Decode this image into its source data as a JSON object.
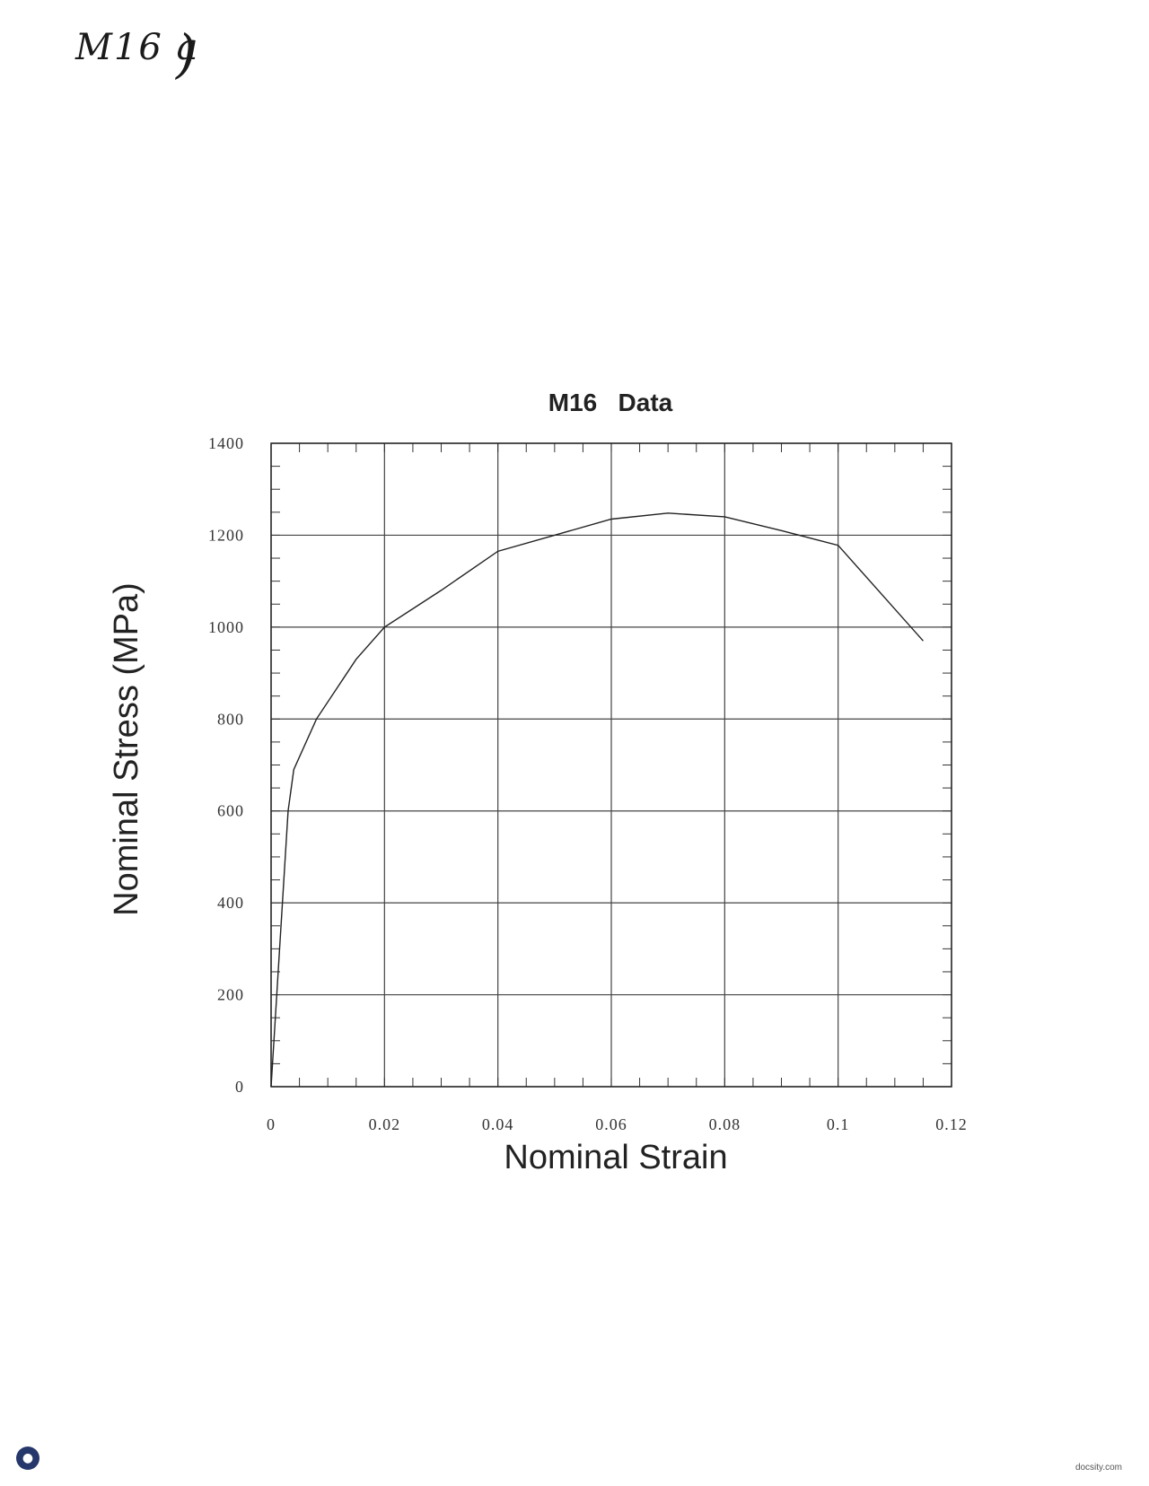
{
  "page": {
    "handwritten_note": "M16 a",
    "handwritten_paren": ")",
    "footer_site": "docsity.com",
    "footer_logo_icon": "docsity-logo-icon"
  },
  "chart_data": {
    "type": "line",
    "title": "M16   Data",
    "xlabel": "Nominal Strain",
    "ylabel": "Nominal Stress (MPa)",
    "xlim": [
      0,
      0.12
    ],
    "ylim": [
      0,
      1400
    ],
    "x_ticks": [
      0,
      0.02,
      0.04,
      0.06,
      0.08,
      0.1,
      0.12
    ],
    "x_tick_labels": [
      "0",
      "0.02",
      "0.04",
      "0.06",
      "0.08",
      "0.1",
      "0.12"
    ],
    "y_ticks": [
      0,
      200,
      400,
      600,
      800,
      1000,
      1200,
      1400
    ],
    "y_tick_labels": [
      "0",
      "200",
      "400",
      "600",
      "800",
      "1000",
      "1200",
      "1400"
    ],
    "grid": true,
    "x_minor_step": 0.005,
    "y_minor_step": 50,
    "line_color": "#222222",
    "series": [
      {
        "x": [
          0,
          0.001,
          0.002,
          0.003,
          0.004,
          0.008,
          0.015,
          0.02,
          0.03,
          0.04,
          0.05,
          0.06,
          0.07,
          0.08,
          0.09,
          0.1,
          0.115
        ],
        "y": [
          0,
          200,
          400,
          600,
          690,
          800,
          930,
          1000,
          1080,
          1165,
          1200,
          1235,
          1248,
          1240,
          1210,
          1178,
          970
        ]
      }
    ]
  }
}
